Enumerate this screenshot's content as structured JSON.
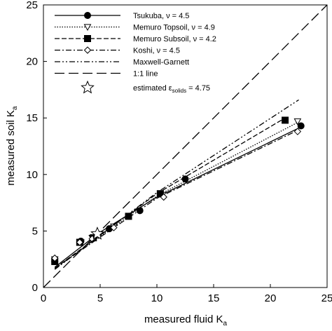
{
  "chart_data": {
    "type": "line",
    "xlabel": "measured fluid K",
    "xlabel_sub": "a",
    "ylabel": "measured soil K",
    "ylabel_sub": "a",
    "xlim": [
      0,
      25
    ],
    "ylim": [
      0,
      25
    ],
    "xticks": [
      0,
      5,
      10,
      15,
      20,
      25
    ],
    "yticks": [
      0,
      5,
      10,
      15,
      20,
      25
    ],
    "series": [
      {
        "name": "Tsukuba, ν = 4.5",
        "color": "#000000",
        "marker": "circle",
        "dash": "",
        "line_x": [
          1,
          5,
          10,
          22.7
        ],
        "line_values": [
          1.8,
          4.9,
          8.0,
          14.2
        ],
        "x": [
          1.0,
          3.3,
          5.8,
          8.5,
          12.5,
          22.7
        ],
        "values": [
          2.3,
          4.1,
          5.2,
          6.8,
          9.6,
          14.3
        ]
      },
      {
        "name": "Memuro Topsoil, ν = 4.9",
        "color": "#000000",
        "marker": "triangle-down",
        "dash": "1.5,2",
        "line_x": [
          1,
          10,
          22.4
        ],
        "line_values": [
          1.7,
          8.1,
          14.6
        ],
        "x": [
          1.0,
          3.3,
          4.3,
          6.2,
          10.5,
          22.4
        ],
        "values": [
          2.5,
          4.0,
          4.4,
          5.4,
          8.2,
          14.7
        ]
      },
      {
        "name": "Memuro Subsoil, ν = 4.2",
        "color": "#000000",
        "marker": "square",
        "dash": "7,3",
        "line_x": [
          1,
          10,
          21.3
        ],
        "line_values": [
          1.7,
          8.3,
          15.0
        ],
        "x": [
          1.0,
          3.2,
          4.4,
          7.5,
          10.3,
          21.3
        ],
        "values": [
          2.3,
          4.0,
          4.4,
          6.3,
          8.3,
          14.8
        ]
      },
      {
        "name": "Koshi, ν = 4.5",
        "color": "#000000",
        "marker": "diamond",
        "dash": "8,3,2,3",
        "line_x": [
          1,
          10,
          22.4
        ],
        "line_values": [
          1.7,
          7.9,
          13.9
        ],
        "x": [
          1.0,
          3.2,
          4.3,
          6.2,
          10.6,
          22.4
        ],
        "values": [
          2.6,
          4.0,
          4.3,
          5.3,
          8.0,
          13.8
        ]
      },
      {
        "name": "Maxwell-Garnett",
        "color": "#000000",
        "marker": null,
        "dash": "8,3,2,3,2,3",
        "line_x": [
          1,
          10,
          22.5
        ],
        "line_values": [
          1.6,
          8.4,
          16.6
        ],
        "x": [],
        "values": []
      },
      {
        "name": "1:1 line",
        "color": "#000000",
        "marker": null,
        "dash": "14,6",
        "line_x": [
          0,
          25
        ],
        "line_values": [
          0,
          25
        ],
        "x": [],
        "values": []
      },
      {
        "name": "estimated ε",
        "name_sub": "solids",
        "name_tail": " = 4.75",
        "color": "#000000",
        "marker": "star",
        "dash": null,
        "line_x": [],
        "line_values": [],
        "x": [
          4.75
        ],
        "values": [
          4.75
        ]
      }
    ]
  }
}
